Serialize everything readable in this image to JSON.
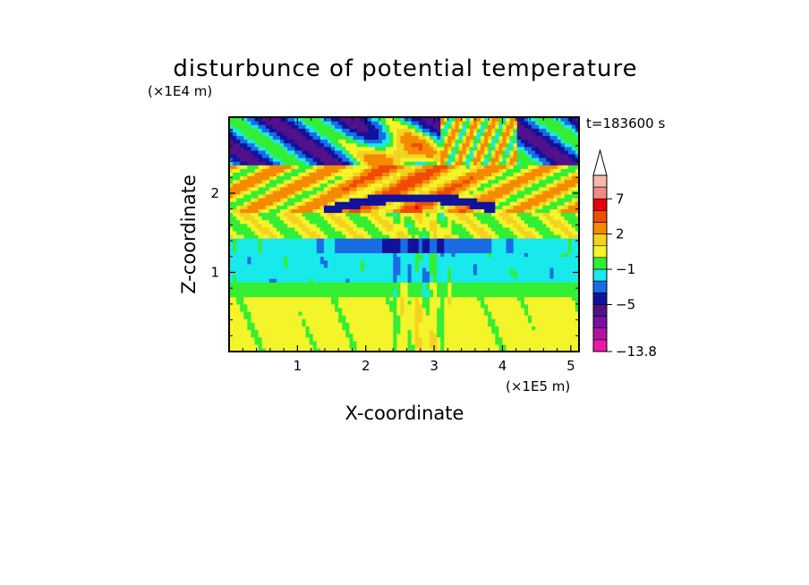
{
  "chart_data": {
    "type": "heatmap",
    "title": "disturbunce of potential temperature",
    "time_label": "t=183600 s",
    "xlabel": "X-coordinate",
    "ylabel": "Z-coordinate",
    "x_unit": "(×1E5 m)",
    "y_unit": "(×1E4 m)",
    "xlim": [
      0,
      5.12
    ],
    "ylim": [
      0,
      2.96
    ],
    "x_ticks": [
      "1",
      "2",
      "3",
      "4",
      "5"
    ],
    "y_ticks": [
      "1",
      "2"
    ],
    "x_tick_values": [
      1,
      2,
      3,
      4,
      5
    ],
    "y_tick_values": [
      1,
      2
    ],
    "colorbar": {
      "labels": [
        "7",
        "2",
        "−1",
        "−5",
        "−13.8"
      ],
      "levels": [
        {
          "min": 8.5,
          "max": 20,
          "color": "#f5b9ab"
        },
        {
          "min": 7,
          "max": 8.5,
          "color": "#ef8a84"
        },
        {
          "min": 5,
          "max": 7,
          "color": "#e8000b"
        },
        {
          "min": 3.5,
          "max": 5,
          "color": "#f04a05"
        },
        {
          "min": 2,
          "max": 3.5,
          "color": "#f58a00"
        },
        {
          "min": 1,
          "max": 2,
          "color": "#f3d321"
        },
        {
          "min": 0,
          "max": 1,
          "color": "#f4f42a"
        },
        {
          "min": -1,
          "max": 0,
          "color": "#34ee34"
        },
        {
          "min": -2,
          "max": -1,
          "color": "#18e9ea"
        },
        {
          "min": -3.5,
          "max": -2,
          "color": "#1a6ce5"
        },
        {
          "min": -5,
          "max": -3.5,
          "color": "#11129c"
        },
        {
          "min": -7,
          "max": -5,
          "color": "#52108a"
        },
        {
          "min": -9,
          "max": -7,
          "color": "#7a0ea7"
        },
        {
          "min": -11,
          "max": -9,
          "color": "#b2159f"
        },
        {
          "min": -13.8,
          "max": -11,
          "color": "#e71aad"
        }
      ]
    },
    "bands": [
      {
        "z": [
          0.0,
          0.7
        ],
        "value": 0.5,
        "note": "yellow"
      },
      {
        "z": [
          0.7,
          0.85
        ],
        "value": -0.5,
        "note": "green"
      },
      {
        "z": [
          0.85,
          1.25
        ],
        "value": -1.5,
        "note": "cyan"
      },
      {
        "z": [
          1.25,
          1.45
        ],
        "value": -2.5,
        "note": "blue"
      },
      {
        "z": [
          1.45,
          1.75
        ],
        "value": 0.6,
        "note": "yellow/green"
      },
      {
        "z": [
          1.75,
          2.3
        ],
        "value": 2.0,
        "note": "orange"
      },
      {
        "z": [
          2.3,
          2.96
        ],
        "value": -3.0,
        "note": "blue top"
      }
    ]
  }
}
